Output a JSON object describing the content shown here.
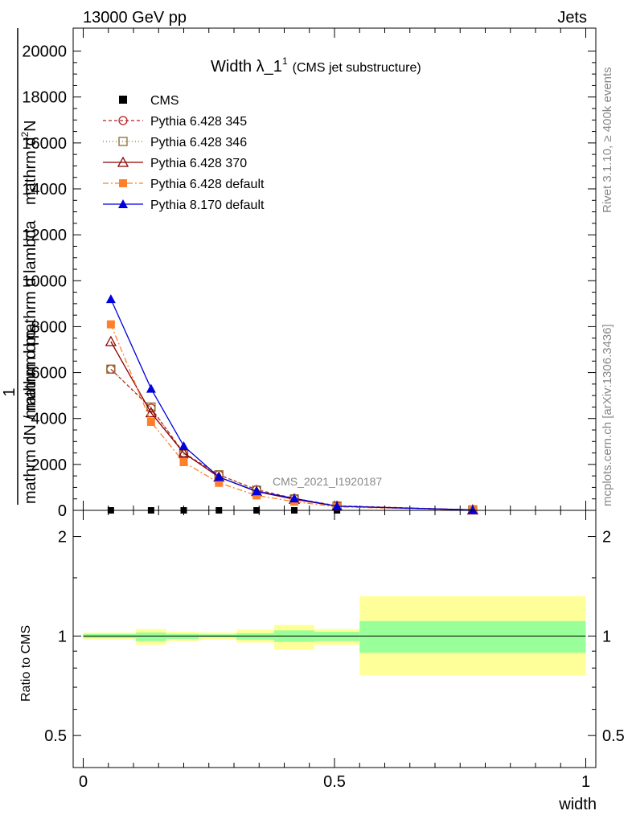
{
  "header": {
    "left": "13000 GeV pp",
    "right": "Jets"
  },
  "side_text": {
    "rivet": "Rivet 3.1.10, ≥ 400k events",
    "mcplots": "mcplots.cern.ch [arXiv:1306.3436]"
  },
  "watermark": "CMS_2021_I1920187",
  "chart_data": [
    {
      "type": "line",
      "title_main": "Width λ_1",
      "title_sup": "1",
      "title_sub": "(CMS jet substructure)",
      "ylabel_top": "mathrm d",
      "ylabel_top_sup": "2",
      "ylabel_top_rest": "N",
      "ylabel_parts": [
        "1",
        "mathrm dN / mathrm d p",
        "mathrm d p",
        "mathrm d lambda"
      ],
      "ylabel_sub": "T",
      "ylim": [
        0,
        21000
      ],
      "xlim": [
        -0.02,
        1.02
      ],
      "yticks": [
        0,
        2000,
        4000,
        6000,
        8000,
        10000,
        12000,
        14000,
        16000,
        18000,
        20000
      ],
      "ytick_labels": [
        "0",
        "2000",
        "4000",
        "6000",
        "8000",
        "10000",
        "12000",
        "14000",
        "16000",
        "18000",
        "20000"
      ],
      "legend_position": "top-left",
      "x": [
        0.055,
        0.135,
        0.2,
        0.27,
        0.345,
        0.42,
        0.505,
        0.775
      ],
      "series": [
        {
          "name": "CMS",
          "color": "#000000",
          "marker": "square-filled",
          "dash": "none",
          "values": [
            0,
            0,
            0,
            0,
            0,
            0,
            0,
            0
          ]
        },
        {
          "name": "Pythia 6.428 345",
          "color": "#b22222",
          "marker": "circle-open",
          "dash": "4,3",
          "values": [
            6150,
            4450,
            2500,
            1550,
            900,
            520,
            200,
            20
          ]
        },
        {
          "name": "Pythia 6.428 346",
          "color": "#8b6b2e",
          "marker": "square-open",
          "dash": "1,3",
          "values": [
            6150,
            4500,
            2450,
            1550,
            880,
            500,
            190,
            20
          ]
        },
        {
          "name": "Pythia 6.428 370",
          "color": "#8b0000",
          "marker": "triangle-open",
          "dash": "none",
          "values": [
            7350,
            4250,
            2500,
            1450,
            820,
            480,
            180,
            20
          ]
        },
        {
          "name": "Pythia 6.428 default",
          "color": "#ff7f2a",
          "marker": "square-filled",
          "dash": "7,3,2,3",
          "values": [
            8100,
            3850,
            2100,
            1200,
            650,
            380,
            150,
            15
          ]
        },
        {
          "name": "Pythia 8.170 default",
          "color": "#0000dd",
          "marker": "triangle-filled",
          "dash": "none",
          "values": [
            9200,
            5300,
            2800,
            1450,
            830,
            520,
            180,
            20
          ]
        }
      ]
    },
    {
      "type": "area",
      "ylabel": "Ratio to CMS",
      "xlabel": "width",
      "scale": "log",
      "ylim": [
        0.4,
        2.4
      ],
      "xlim": [
        -0.02,
        1.02
      ],
      "yticks": [
        0.5,
        1,
        2
      ],
      "ytick_labels": [
        "0.5",
        "1",
        "2"
      ],
      "xticks": [
        0,
        0.5,
        1
      ],
      "xtick_labels": [
        "0",
        "0.5",
        "1"
      ],
      "reference": 1,
      "bands": [
        {
          "x0": 0.0,
          "x1": 0.105,
          "inner": [
            0.985,
            1.015
          ],
          "outer": [
            0.975,
            1.025
          ]
        },
        {
          "x0": 0.105,
          "x1": 0.165,
          "inner": [
            0.965,
            1.025
          ],
          "outer": [
            0.94,
            1.05
          ]
        },
        {
          "x0": 0.165,
          "x1": 0.23,
          "inner": [
            0.98,
            1.015
          ],
          "outer": [
            0.965,
            1.03
          ]
        },
        {
          "x0": 0.23,
          "x1": 0.305,
          "inner": [
            0.99,
            1.012
          ],
          "outer": [
            0.975,
            1.025
          ]
        },
        {
          "x0": 0.305,
          "x1": 0.38,
          "inner": [
            0.975,
            1.02
          ],
          "outer": [
            0.955,
            1.045
          ]
        },
        {
          "x0": 0.38,
          "x1": 0.46,
          "inner": [
            0.96,
            1.04
          ],
          "outer": [
            0.91,
            1.08
          ]
        },
        {
          "x0": 0.46,
          "x1": 0.55,
          "inner": [
            0.965,
            1.03
          ],
          "outer": [
            0.94,
            1.05
          ]
        },
        {
          "x0": 0.55,
          "x1": 1.0,
          "inner": [
            0.89,
            1.11
          ],
          "outer": [
            0.76,
            1.32
          ]
        }
      ],
      "colors": {
        "inner": "#99ff99",
        "outer": "#ffff99"
      }
    }
  ]
}
